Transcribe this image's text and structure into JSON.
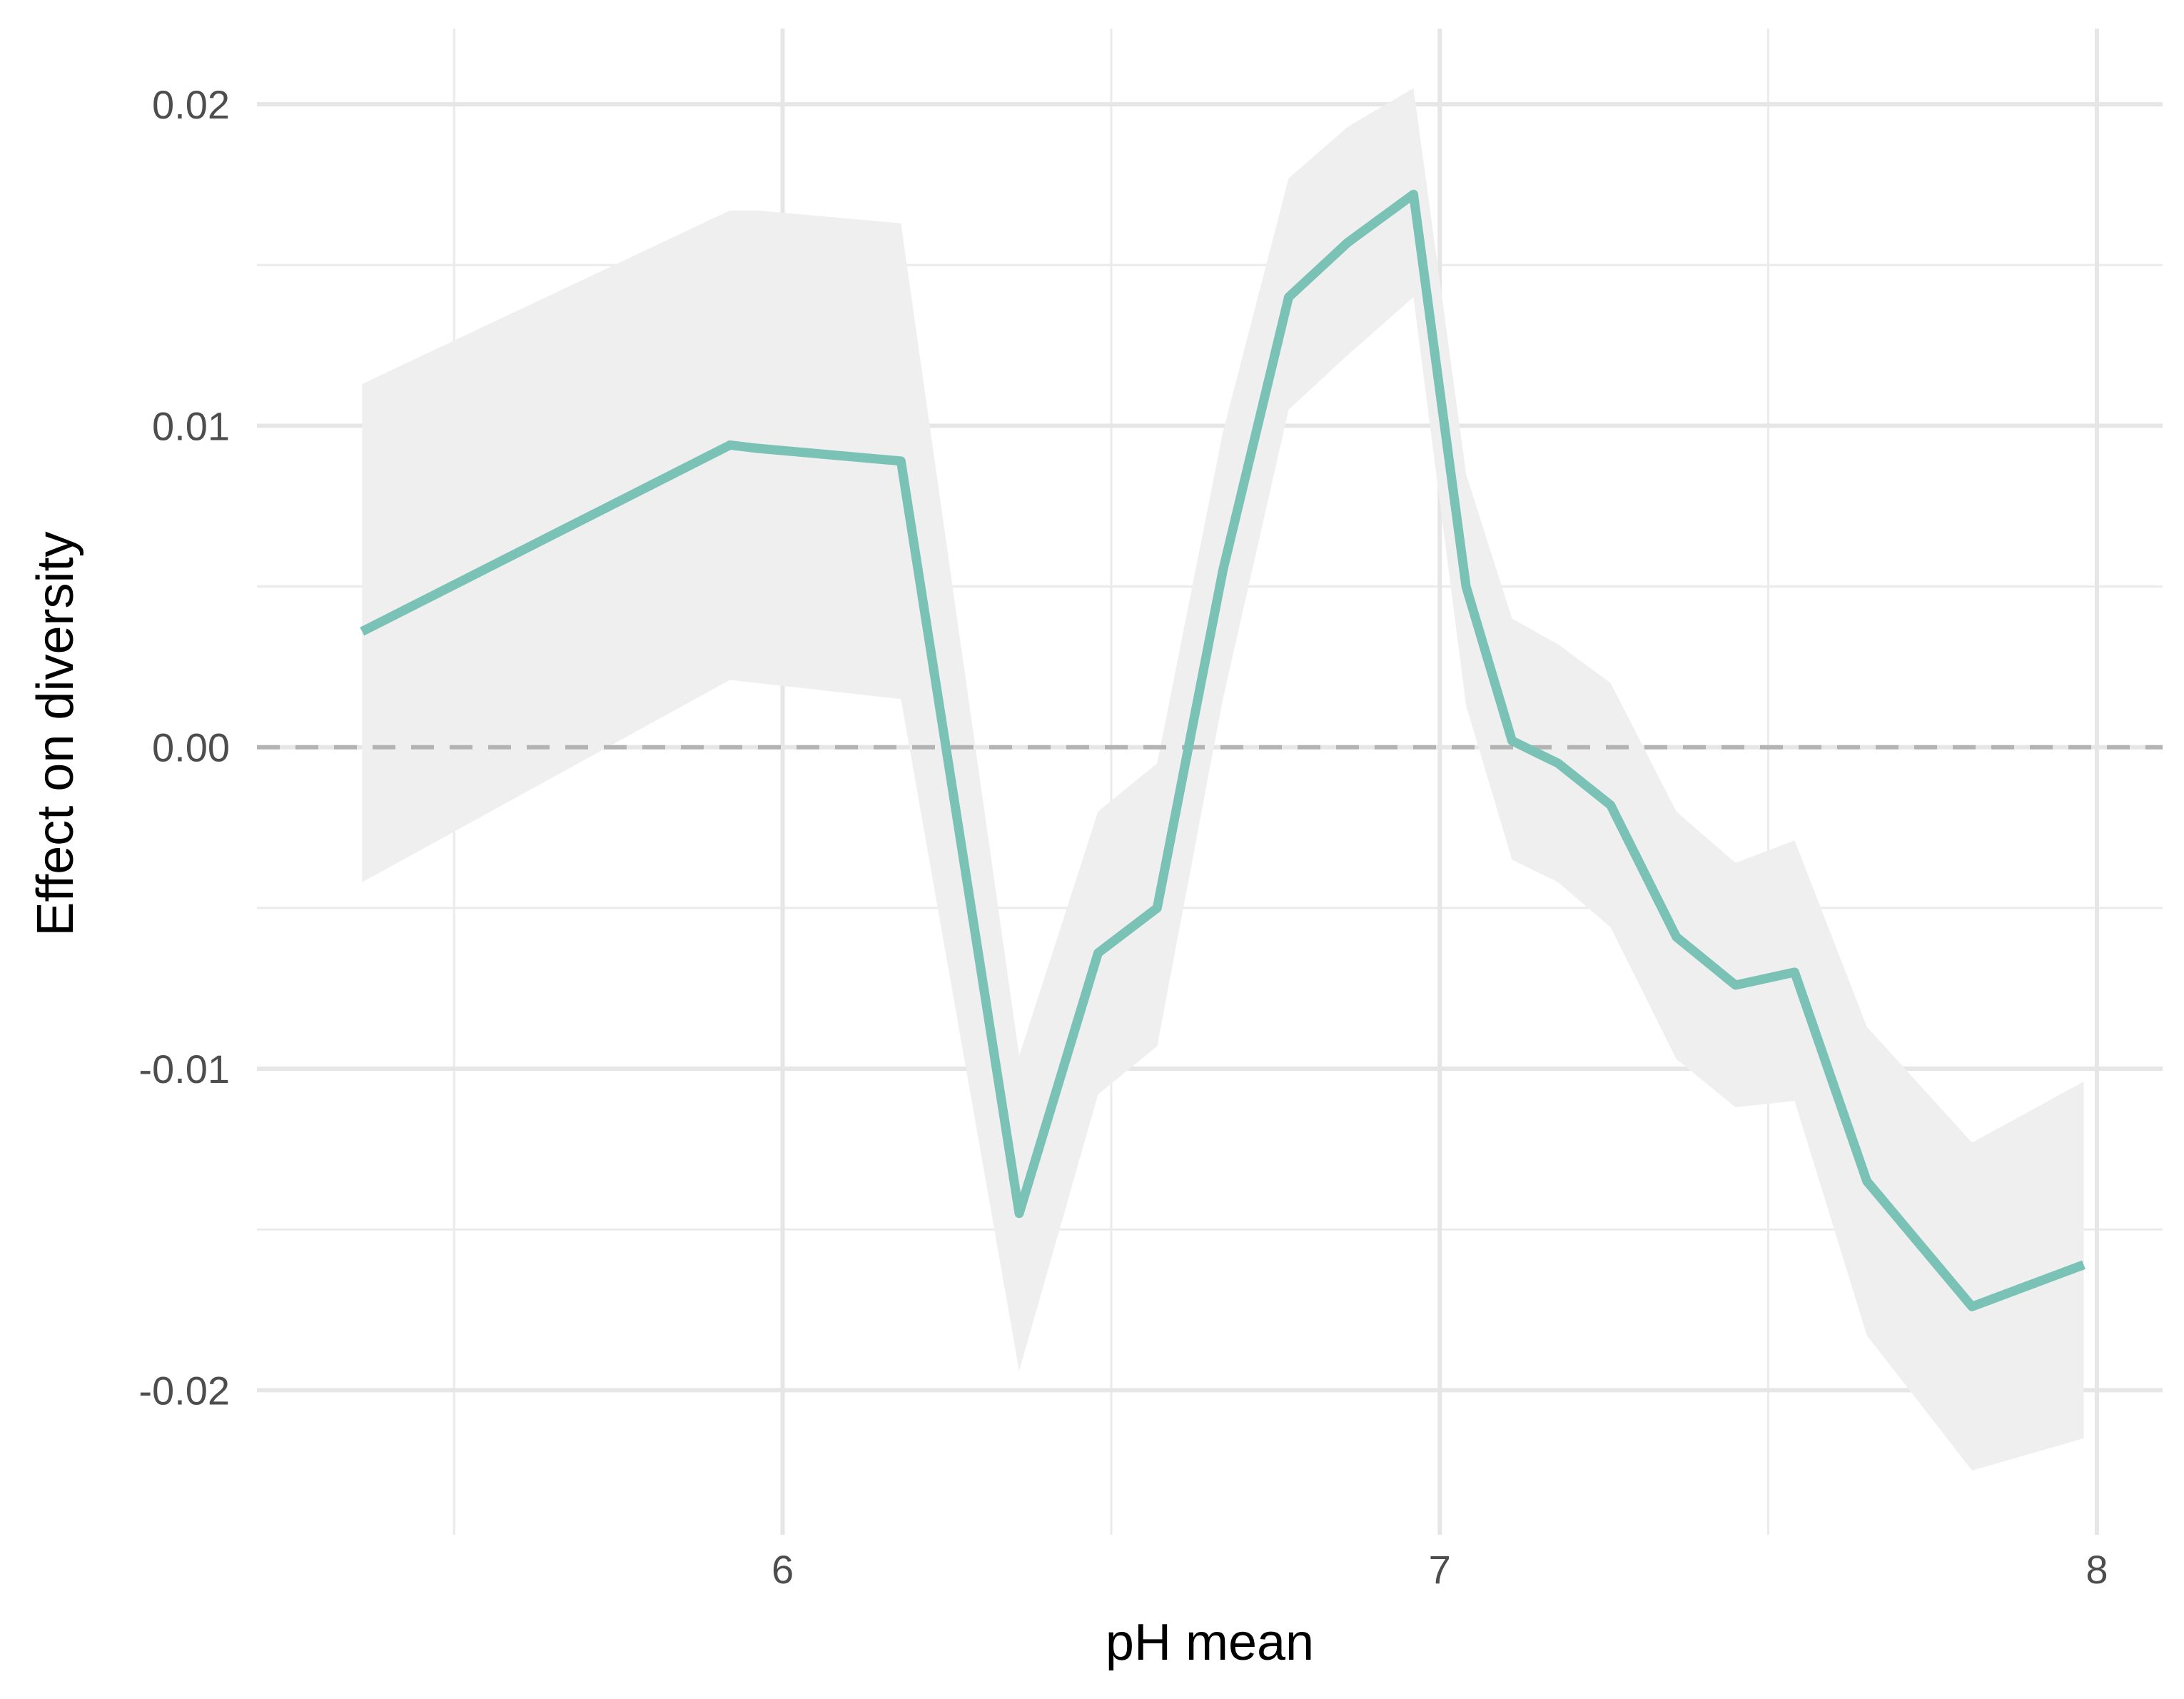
{
  "chart_data": {
    "type": "line",
    "title": "",
    "xlabel": "pH mean",
    "ylabel": "Effect on diversity",
    "xlim": [
      5.2,
      8.1
    ],
    "ylim": [
      -0.0245,
      0.0228
    ],
    "x_ticks": [
      6,
      7,
      8
    ],
    "x_tick_labels": [
      "6",
      "7",
      "8"
    ],
    "x_minor_ticks": [
      5.5,
      6.5,
      7.5
    ],
    "y_ticks": [
      -0.02,
      -0.01,
      0.0,
      0.01,
      0.02
    ],
    "y_tick_labels": [
      "-0.02",
      "-0.01",
      "0.00",
      "0.01",
      "0.02"
    ],
    "y_minor_ticks": [
      -0.015,
      -0.005,
      0.005,
      0.015
    ],
    "grid": true,
    "reference_line": {
      "y": 0,
      "style": "dashed",
      "color": "#b3b3b3"
    },
    "series": [
      {
        "color": "#7bc2b6",
        "band_color": "#efefef",
        "x": [
          5.36,
          5.92,
          5.96,
          6.18,
          6.36,
          6.48,
          6.57,
          6.67,
          6.77,
          6.86,
          6.96,
          7.04,
          7.11,
          7.18,
          7.26,
          7.36,
          7.45,
          7.54,
          7.65,
          7.81,
          7.98
        ],
        "y": [
          0.0036,
          0.0094,
          0.0093,
          0.0089,
          -0.0145,
          -0.0064,
          -0.005,
          0.0055,
          0.014,
          0.0157,
          0.0172,
          0.005,
          0.0002,
          -0.0005,
          -0.0018,
          -0.0059,
          -0.0074,
          -0.007,
          -0.0135,
          -0.0174,
          -0.0161
        ],
        "lower": [
          -0.0042,
          0.0021,
          0.002,
          0.0015,
          -0.0194,
          -0.0108,
          -0.0093,
          0.0015,
          0.0105,
          0.0122,
          0.014,
          0.0013,
          -0.0035,
          -0.0042,
          -0.0056,
          -0.0097,
          -0.0112,
          -0.011,
          -0.0183,
          -0.0225,
          -0.0215
        ],
        "upper": [
          0.0113,
          0.0167,
          0.0167,
          0.0163,
          -0.0096,
          -0.002,
          -0.0005,
          0.0098,
          0.0177,
          0.0193,
          0.0205,
          0.0085,
          0.004,
          0.0032,
          0.002,
          -0.002,
          -0.0036,
          -0.0029,
          -0.0087,
          -0.0123,
          -0.0104
        ]
      }
    ]
  }
}
